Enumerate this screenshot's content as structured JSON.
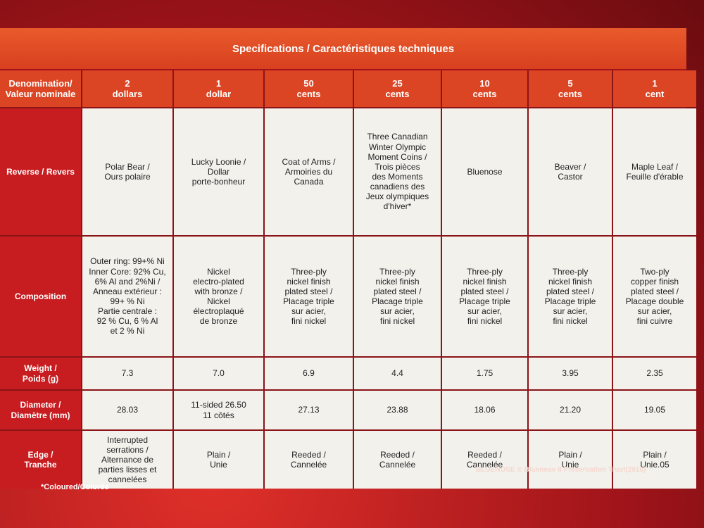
{
  "header": {
    "title": "Specifications / Caractéristiques techniques"
  },
  "table": {
    "corner": "Denomination/\nValeur nominale",
    "columns": [
      "2\ndollars",
      "1\ndollar",
      "50\ncents",
      "25\ncents",
      "10\ncents",
      "5\ncents",
      "1\ncent"
    ],
    "rows": [
      {
        "label": "Reverse / Revers",
        "cells": [
          "Polar Bear /\nOurs polaire",
          "Lucky Loonie /\nDollar\nporte-bonheur",
          "Coat of Arms /\nArmoiries du\nCanada",
          "Three Canadian\nWinter Olympic\nMoment Coins /\nTrois pièces\ndes Moments\ncanadiens des\nJeux olympiques\nd'hiver*",
          "Bluenose",
          "Beaver /\nCastor",
          "Maple Leaf /\nFeuille d'érable"
        ]
      },
      {
        "label": "Composition",
        "cells": [
          "Outer ring: 99+% Ni\nInner Core: 92% Cu,\n6% Al and 2%Ni /\nAnneau extérieur :\n99+ % Ni\nPartie centrale :\n92 % Cu, 6 % Al\net 2 % Ni",
          "Nickel\nelectro-plated\nwith bronze /\nNickel\nélectroplaqué\nde bronze",
          "Three-ply\nnickel finish\nplated steel /\nPlacage triple\nsur acier,\nfini nickel",
          "Three-ply\nnickel finish\nplated steel /\nPlacage triple\nsur acier,\nfini nickel",
          "Three-ply\nnickel finish\nplated steel /\nPlacage triple\nsur acier,\nfini nickel",
          "Three-ply\nnickel finish\nplated steel /\nPlacage triple\nsur acier,\nfini nickel",
          "Two-ply\ncopper finish\nplated steel /\nPlacage double\nsur acier,\nfini cuivre"
        ]
      },
      {
        "label": "Weight /\nPoids (g)",
        "cells": [
          "7.3",
          "7.0",
          "6.9",
          "4.4",
          "1.75",
          "3.95",
          "2.35"
        ]
      },
      {
        "label": "Diameter /\nDiamètre (mm)",
        "cells": [
          "28.03",
          "11-sided 26.50\n11 côtés",
          "27.13",
          "23.88",
          "18.06",
          "21.20",
          "19.05"
        ]
      },
      {
        "label": "Edge /\nTranche",
        "cells": [
          "Interrupted\nserrations /\nAlternance de\nparties lisses et\ncannelées",
          "Plain /\nUnie",
          "Reeded /\nCannelée",
          "Reeded /\nCannelée",
          "Reeded /\nCannelée",
          "Plain /\nUnie",
          "Plain /\nUnie.05"
        ]
      }
    ]
  },
  "footnote": "*Coloured/Colorée",
  "credit": "BLUENOSE © Bluenose II Preservation Trust(2010)"
}
